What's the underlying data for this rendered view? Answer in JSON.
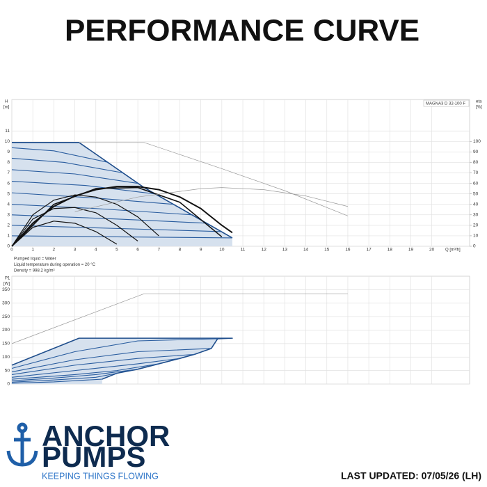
{
  "header": {
    "title": "PERFORMANCE CURVE"
  },
  "chart_data": [
    {
      "type": "line",
      "model": "MAGNA3 D 32-100 F",
      "y_label": "H",
      "y_unit": "[m]",
      "y2_label": "eta",
      "y2_unit": "[%]",
      "x_label": "Q [m³/h]",
      "xlim": [
        0,
        21.8
      ],
      "xticks": [
        0,
        1,
        2,
        3,
        4,
        5,
        6,
        7,
        8,
        9,
        10,
        11,
        12,
        13,
        14,
        15,
        16,
        17,
        18,
        19,
        20
      ],
      "xtick_labels": true,
      "ylim": [
        0,
        14
      ],
      "yticks": [
        0,
        1,
        2,
        3,
        4,
        5,
        6,
        7,
        8,
        9,
        10,
        11
      ],
      "y2lim": [
        0,
        140
      ],
      "y2ticks": [
        0,
        10,
        20,
        30,
        40,
        50,
        60,
        70,
        80,
        90,
        100
      ],
      "grid": true,
      "notes": [
        "Pumped liquid = Water",
        "Liquid temperature during operation = 20 °C",
        "Density = 998.2 kg/m³"
      ],
      "series": [
        {
          "color": "#1f4e8c",
          "fill": "#d6e1ee",
          "stroke_width": 1.6,
          "x": [
            0,
            3.2,
            6.3,
            10.5
          ],
          "values": [
            9.9,
            9.9,
            5.6,
            0.8
          ]
        },
        {
          "color": "#2a5d9f",
          "stroke_width": 1.1,
          "x": [
            0,
            2,
            4.6
          ],
          "values": [
            9.4,
            9.1,
            8.0
          ]
        },
        {
          "color": "#2a5d9f",
          "stroke_width": 1.1,
          "x": [
            0,
            2.5,
            5.3
          ],
          "values": [
            8.4,
            8.0,
            7.0
          ]
        },
        {
          "color": "#2a5d9f",
          "stroke_width": 1.1,
          "x": [
            0,
            3,
            6.0
          ],
          "values": [
            7.3,
            6.9,
            6.0
          ]
        },
        {
          "color": "#2a5d9f",
          "stroke_width": 1.1,
          "x": [
            0,
            3.5,
            6.8
          ],
          "values": [
            6.2,
            5.8,
            5.0
          ]
        },
        {
          "color": "#2a5d9f",
          "stroke_width": 1.1,
          "x": [
            0,
            4,
            7.7
          ],
          "values": [
            5.1,
            4.6,
            4.0
          ]
        },
        {
          "color": "#2a5d9f",
          "stroke_width": 1.1,
          "x": [
            0,
            4,
            8.6
          ],
          "values": [
            4.0,
            3.6,
            3.0
          ]
        },
        {
          "color": "#2a5d9f",
          "stroke_width": 1.1,
          "x": [
            0,
            5,
            9.3
          ],
          "values": [
            3.0,
            2.6,
            2.2
          ]
        },
        {
          "color": "#2a5d9f",
          "stroke_width": 1.1,
          "x": [
            0,
            5,
            10
          ],
          "values": [
            2.0,
            1.7,
            1.4
          ]
        },
        {
          "color": "#2a5d9f",
          "stroke_width": 1.1,
          "x": [
            0,
            5,
            10.5
          ],
          "values": [
            1.0,
            0.9,
            0.8
          ]
        },
        {
          "color": "#111111",
          "stroke_width": 2,
          "axis": "y2",
          "x": [
            0,
            1,
            2,
            3,
            4,
            5,
            6,
            7,
            8,
            9,
            10,
            10.5
          ],
          "values": [
            0,
            22,
            38,
            48,
            54,
            57,
            57,
            54,
            47,
            36,
            20,
            13
          ]
        },
        {
          "color": "#111111",
          "stroke_width": 1.6,
          "axis": "y2",
          "x": [
            0,
            2,
            4,
            6,
            8,
            10
          ],
          "values": [
            0,
            40,
            55,
            56,
            42,
            9
          ]
        },
        {
          "color": "#111111",
          "stroke_width": 1.2,
          "axis": "y2",
          "x": [
            0,
            1,
            2,
            3,
            4,
            5,
            6,
            7
          ],
          "values": [
            0,
            30,
            44,
            49,
            47,
            40,
            28,
            10
          ]
        },
        {
          "color": "#111111",
          "stroke_width": 1.2,
          "axis": "y2",
          "x": [
            0,
            1,
            2,
            3,
            4,
            5,
            6
          ],
          "values": [
            0,
            26,
            36,
            37,
            32,
            20,
            5
          ]
        },
        {
          "color": "#111111",
          "stroke_width": 1.2,
          "axis": "y2",
          "x": [
            0,
            1,
            2,
            3,
            4,
            5
          ],
          "values": [
            0,
            18,
            24,
            22,
            14,
            2
          ]
        },
        {
          "color": "#999999",
          "stroke_width": 0.7,
          "x": [
            3.2,
            6.3,
            10,
            13,
            16
          ],
          "values": [
            9.9,
            9.9,
            7.4,
            5.3,
            2.9
          ]
        },
        {
          "color": "#999999",
          "stroke_width": 0.7,
          "axis": "y2",
          "x": [
            3,
            6,
            9,
            10,
            12,
            14,
            16
          ],
          "values": [
            33,
            47,
            55,
            56,
            54,
            48,
            38
          ]
        }
      ]
    },
    {
      "type": "line",
      "y_label": "P1",
      "y_unit": "[W]",
      "xlim": [
        0,
        21.8
      ],
      "xticks": [
        0,
        1,
        2,
        3,
        4,
        5,
        6,
        7,
        8,
        9,
        10,
        11,
        12,
        13,
        14,
        15,
        16,
        17,
        18,
        19,
        20
      ],
      "xtick_labels": false,
      "ylim": [
        0,
        400
      ],
      "yticks": [
        0,
        50,
        100,
        150,
        200,
        250,
        300,
        350
      ],
      "grid": true,
      "series": [
        {
          "color": "#1f4e8c",
          "fill": "#d6e1ee",
          "stroke_width": 1.6,
          "x": [
            0,
            3.2,
            10.5,
            9.8,
            9.5,
            8.7,
            8,
            7,
            6,
            5,
            4.3
          ],
          "values": [
            70,
            170,
            170,
            168,
            132,
            110,
            95,
            75,
            55,
            40,
            18
          ]
        },
        {
          "color": "#2a5d9f",
          "stroke_width": 1.1,
          "x": [
            0,
            3,
            6,
            9.8
          ],
          "values": [
            58,
            120,
            160,
            168
          ]
        },
        {
          "color": "#2a5d9f",
          "stroke_width": 1.1,
          "x": [
            0,
            3,
            6,
            9.5
          ],
          "values": [
            45,
            90,
            120,
            132
          ]
        },
        {
          "color": "#2a5d9f",
          "stroke_width": 1.1,
          "x": [
            0,
            3,
            6,
            8.7
          ],
          "values": [
            35,
            70,
            95,
            110
          ]
        },
        {
          "color": "#2a5d9f",
          "stroke_width": 1.1,
          "x": [
            0,
            3,
            6,
            8
          ],
          "values": [
            25,
            50,
            75,
            95
          ]
        },
        {
          "color": "#2a5d9f",
          "stroke_width": 1.1,
          "x": [
            0,
            3,
            5,
            7
          ],
          "values": [
            18,
            35,
            50,
            75
          ]
        },
        {
          "color": "#2a5d9f",
          "stroke_width": 1.1,
          "x": [
            0,
            2,
            4,
            6
          ],
          "values": [
            12,
            22,
            35,
            55
          ]
        },
        {
          "color": "#2a5d9f",
          "stroke_width": 1.1,
          "x": [
            0,
            2,
            4,
            5
          ],
          "values": [
            7,
            15,
            25,
            40
          ]
        },
        {
          "color": "#2a5d9f",
          "stroke_width": 1.1,
          "x": [
            0,
            2,
            4.3
          ],
          "values": [
            3,
            8,
            18
          ]
        },
        {
          "color": "#999999",
          "stroke_width": 0.7,
          "x": [
            0,
            6.3,
            16
          ],
          "values": [
            150,
            335,
            335
          ]
        }
      ]
    }
  ],
  "footer": {
    "brand_top": "ANCHOR",
    "brand_bottom": "PUMPS",
    "tagline": "KEEPING THINGS FLOWING",
    "updated": "LAST UPDATED: 07/05/26 (LH)"
  }
}
